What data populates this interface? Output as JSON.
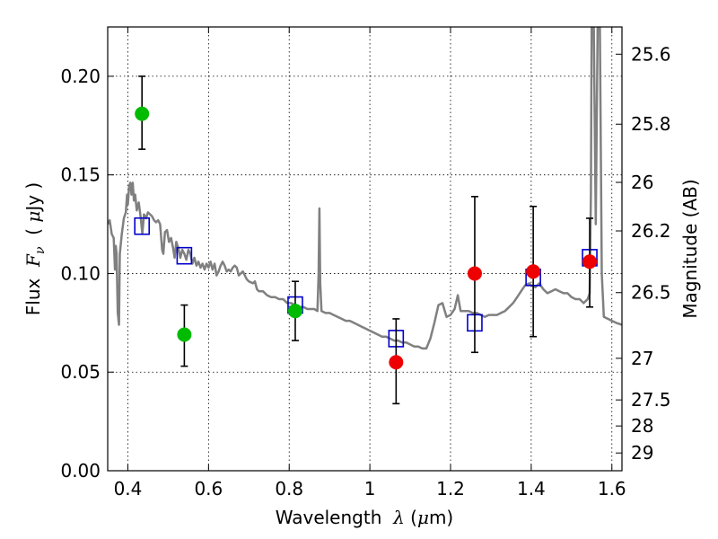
{
  "chart_data": {
    "type": "scatter",
    "xlabel": {
      "prefix": "Wavelength  ",
      "symbol": "λ",
      "suffix": " (",
      "unit_mu": "μ",
      "unit": "m)"
    },
    "ylabel": {
      "prefix": "Flux  ",
      "symbol": "F",
      "sub": "ν",
      "open": "  ( ",
      "unit_mu": "μ",
      "unit": "Jy )"
    },
    "y2label": "Magnitude (AB)",
    "xlim": [
      0.35,
      1.625
    ],
    "ylim": [
      0.0,
      0.225
    ],
    "grid": true,
    "x_ticks": [
      0.4,
      0.6,
      0.8,
      1.0,
      1.2,
      1.4,
      1.6
    ],
    "x_tick_labels": [
      "0.4",
      "0.6",
      "0.8",
      "1",
      "1.2",
      "1.4",
      "1.6"
    ],
    "y_ticks": [
      0.0,
      0.05,
      0.1,
      0.15,
      0.2
    ],
    "y_tick_labels": [
      "0.00",
      "0.05",
      "0.10",
      "0.15",
      "0.20"
    ],
    "right_ticks": [
      {
        "label": "25.6",
        "flux": 0.2112
      },
      {
        "label": "25.8",
        "flux": 0.1757
      },
      {
        "label": "26",
        "flux": 0.1462
      },
      {
        "label": "26.2",
        "flux": 0.1216
      },
      {
        "label": "26.5",
        "flux": 0.0903
      },
      {
        "label": "27",
        "flux": 0.057
      },
      {
        "label": "27.5",
        "flux": 0.0359
      },
      {
        "label": "28",
        "flux": 0.0227
      },
      {
        "label": "29",
        "flux": 0.009
      }
    ],
    "series": [
      {
        "name": "model-spectrum",
        "kind": "line",
        "color": "#808080",
        "points": [
          [
            0.35,
            0.125
          ],
          [
            0.355,
            0.127
          ],
          [
            0.36,
            0.12
          ],
          [
            0.365,
            0.118
          ],
          [
            0.368,
            0.102
          ],
          [
            0.37,
            0.114
          ],
          [
            0.372,
            0.11
          ],
          [
            0.375,
            0.08
          ],
          [
            0.378,
            0.074
          ],
          [
            0.38,
            0.11
          ],
          [
            0.385,
            0.12
          ],
          [
            0.39,
            0.128
          ],
          [
            0.395,
            0.131
          ],
          [
            0.398,
            0.14
          ],
          [
            0.4,
            0.135
          ],
          [
            0.403,
            0.144
          ],
          [
            0.406,
            0.146
          ],
          [
            0.409,
            0.14
          ],
          [
            0.412,
            0.146
          ],
          [
            0.415,
            0.137
          ],
          [
            0.418,
            0.14
          ],
          [
            0.422,
            0.132
          ],
          [
            0.427,
            0.136
          ],
          [
            0.432,
            0.128
          ],
          [
            0.436,
            0.12
          ],
          [
            0.44,
            0.13
          ],
          [
            0.445,
            0.128
          ],
          [
            0.45,
            0.131
          ],
          [
            0.455,
            0.13
          ],
          [
            0.46,
            0.129
          ],
          [
            0.465,
            0.127
          ],
          [
            0.47,
            0.126
          ],
          [
            0.475,
            0.127
          ],
          [
            0.48,
            0.125
          ],
          [
            0.485,
            0.112
          ],
          [
            0.488,
            0.11
          ],
          [
            0.492,
            0.121
          ],
          [
            0.497,
            0.122
          ],
          [
            0.502,
            0.116
          ],
          [
            0.507,
            0.118
          ],
          [
            0.512,
            0.113
          ],
          [
            0.516,
            0.108
          ],
          [
            0.52,
            0.116
          ],
          [
            0.525,
            0.113
          ],
          [
            0.53,
            0.108
          ],
          [
            0.535,
            0.112
          ],
          [
            0.54,
            0.11
          ],
          [
            0.545,
            0.107
          ],
          [
            0.55,
            0.112
          ],
          [
            0.555,
            0.11
          ],
          [
            0.56,
            0.105
          ],
          [
            0.565,
            0.108
          ],
          [
            0.57,
            0.104
          ],
          [
            0.575,
            0.106
          ],
          [
            0.58,
            0.103
          ],
          [
            0.585,
            0.105
          ],
          [
            0.59,
            0.102
          ],
          [
            0.595,
            0.105
          ],
          [
            0.6,
            0.103
          ],
          [
            0.605,
            0.106
          ],
          [
            0.61,
            0.102
          ],
          [
            0.615,
            0.105
          ],
          [
            0.62,
            0.099
          ],
          [
            0.625,
            0.101
          ],
          [
            0.63,
            0.104
          ],
          [
            0.635,
            0.106
          ],
          [
            0.64,
            0.104
          ],
          [
            0.645,
            0.101
          ],
          [
            0.65,
            0.102
          ],
          [
            0.655,
            0.101
          ],
          [
            0.66,
            0.103
          ],
          [
            0.665,
            0.104
          ],
          [
            0.67,
            0.103
          ],
          [
            0.675,
            0.099
          ],
          [
            0.68,
            0.1
          ],
          [
            0.685,
            0.101
          ],
          [
            0.69,
            0.099
          ],
          [
            0.695,
            0.097
          ],
          [
            0.7,
            0.096
          ],
          [
            0.71,
            0.095
          ],
          [
            0.715,
            0.096
          ],
          [
            0.72,
            0.092
          ],
          [
            0.725,
            0.091
          ],
          [
            0.735,
            0.091
          ],
          [
            0.745,
            0.089
          ],
          [
            0.755,
            0.088
          ],
          [
            0.765,
            0.088
          ],
          [
            0.775,
            0.087
          ],
          [
            0.785,
            0.087
          ],
          [
            0.795,
            0.085
          ],
          [
            0.805,
            0.085
          ],
          [
            0.815,
            0.084
          ],
          [
            0.825,
            0.083
          ],
          [
            0.835,
            0.083
          ],
          [
            0.845,
            0.082
          ],
          [
            0.855,
            0.082
          ],
          [
            0.862,
            0.082
          ],
          [
            0.87,
            0.081
          ],
          [
            0.873,
            0.1
          ],
          [
            0.875,
            0.133
          ],
          [
            0.877,
            0.095
          ],
          [
            0.88,
            0.081
          ],
          [
            0.89,
            0.08
          ],
          [
            0.9,
            0.08
          ],
          [
            0.91,
            0.079
          ],
          [
            0.92,
            0.078
          ],
          [
            0.93,
            0.077
          ],
          [
            0.94,
            0.076
          ],
          [
            0.95,
            0.076
          ],
          [
            0.96,
            0.075
          ],
          [
            0.97,
            0.074
          ],
          [
            0.98,
            0.073
          ],
          [
            0.99,
            0.072
          ],
          [
            1.0,
            0.071
          ],
          [
            1.01,
            0.07
          ],
          [
            1.02,
            0.069
          ],
          [
            1.03,
            0.068
          ],
          [
            1.04,
            0.068
          ],
          [
            1.05,
            0.067
          ],
          [
            1.06,
            0.066
          ],
          [
            1.07,
            0.066
          ],
          [
            1.08,
            0.065
          ],
          [
            1.09,
            0.065
          ],
          [
            1.1,
            0.064
          ],
          [
            1.11,
            0.063
          ],
          [
            1.12,
            0.063
          ],
          [
            1.13,
            0.062
          ],
          [
            1.14,
            0.062
          ],
          [
            1.15,
            0.067
          ],
          [
            1.16,
            0.075
          ],
          [
            1.17,
            0.084
          ],
          [
            1.18,
            0.085
          ],
          [
            1.19,
            0.078
          ],
          [
            1.2,
            0.079
          ],
          [
            1.21,
            0.082
          ],
          [
            1.218,
            0.089
          ],
          [
            1.225,
            0.081
          ],
          [
            1.235,
            0.081
          ],
          [
            1.245,
            0.081
          ],
          [
            1.255,
            0.08
          ],
          [
            1.265,
            0.08
          ],
          [
            1.275,
            0.079
          ],
          [
            1.285,
            0.078
          ],
          [
            1.295,
            0.079
          ],
          [
            1.305,
            0.079
          ],
          [
            1.315,
            0.079
          ],
          [
            1.325,
            0.08
          ],
          [
            1.335,
            0.081
          ],
          [
            1.345,
            0.083
          ],
          [
            1.355,
            0.085
          ],
          [
            1.365,
            0.088
          ],
          [
            1.375,
            0.091
          ],
          [
            1.385,
            0.094
          ],
          [
            1.395,
            0.095
          ],
          [
            1.4,
            0.094
          ],
          [
            1.41,
            0.093
          ],
          [
            1.42,
            0.095
          ],
          [
            1.43,
            0.092
          ],
          [
            1.44,
            0.09
          ],
          [
            1.45,
            0.091
          ],
          [
            1.46,
            0.092
          ],
          [
            1.47,
            0.091
          ],
          [
            1.48,
            0.09
          ],
          [
            1.49,
            0.09
          ],
          [
            1.5,
            0.088
          ],
          [
            1.51,
            0.087
          ],
          [
            1.52,
            0.087
          ],
          [
            1.53,
            0.085
          ],
          [
            1.54,
            0.087
          ],
          [
            1.545,
            0.09
          ],
          [
            1.548,
            0.14
          ],
          [
            1.55,
            0.23
          ],
          [
            1.555,
            0.23
          ],
          [
            1.56,
            0.125
          ],
          [
            1.565,
            0.23
          ],
          [
            1.57,
            0.23
          ],
          [
            1.575,
            0.1
          ],
          [
            1.58,
            0.078
          ],
          [
            1.59,
            0.077
          ],
          [
            1.6,
            0.076
          ],
          [
            1.61,
            0.075
          ],
          [
            1.625,
            0.074
          ]
        ]
      },
      {
        "name": "model-photometry",
        "kind": "open-square",
        "color": "#0000cc",
        "points": [
          [
            0.435,
            0.124
          ],
          [
            0.54,
            0.109
          ],
          [
            0.815,
            0.084
          ],
          [
            1.065,
            0.067
          ],
          [
            1.26,
            0.075
          ],
          [
            1.405,
            0.098
          ],
          [
            1.545,
            0.108
          ]
        ]
      },
      {
        "name": "observed-optical",
        "kind": "filled-circle",
        "color": "#00bb00",
        "points": [
          {
            "x": 0.435,
            "y": 0.181,
            "err_lo": 0.163,
            "err_hi": 0.2
          },
          {
            "x": 0.54,
            "y": 0.069,
            "err_lo": 0.053,
            "err_hi": 0.084
          },
          {
            "x": 0.815,
            "y": 0.081,
            "err_lo": 0.066,
            "err_hi": 0.096
          }
        ]
      },
      {
        "name": "observed-infrared",
        "kind": "filled-circle",
        "color": "#ee0000",
        "points": [
          {
            "x": 1.065,
            "y": 0.055,
            "err_lo": 0.034,
            "err_hi": 0.077
          },
          {
            "x": 1.26,
            "y": 0.1,
            "err_lo": 0.06,
            "err_hi": 0.139
          },
          {
            "x": 1.405,
            "y": 0.101,
            "err_lo": 0.068,
            "err_hi": 0.134
          },
          {
            "x": 1.545,
            "y": 0.106,
            "err_lo": 0.083,
            "err_hi": 0.128
          }
        ]
      }
    ]
  }
}
